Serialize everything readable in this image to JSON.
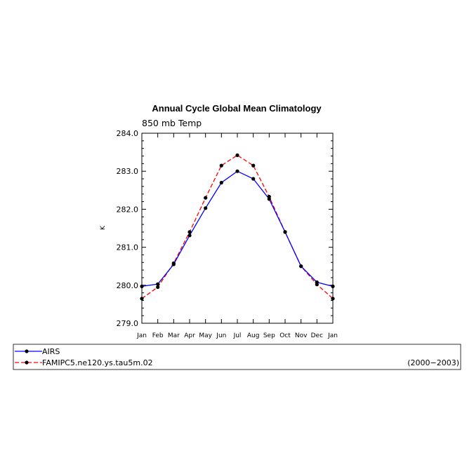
{
  "chart_data": {
    "type": "line",
    "title": "Annual Cycle Global Mean Climatology",
    "subtitle": "850 mb Temp",
    "ylabel": "K",
    "ylim": [
      279.0,
      284.0
    ],
    "yticks": [
      "279.0",
      "280.0",
      "281.0",
      "282.0",
      "283.0",
      "284.0"
    ],
    "categories": [
      "Jan",
      "Feb",
      "Mar",
      "Apr",
      "May",
      "Jun",
      "Jul",
      "Aug",
      "Sep",
      "Oct",
      "Nov",
      "Dec",
      "Jan"
    ],
    "series": [
      {
        "name": "AIRS",
        "color": "#0000ff",
        "line_style": "solid",
        "values": [
          279.97,
          280.03,
          280.55,
          281.31,
          282.03,
          282.7,
          283.0,
          282.8,
          282.27,
          281.4,
          280.5,
          280.08,
          279.97
        ]
      },
      {
        "name": "FAMIPC5.ne120.ys.tau5m.02",
        "color": "#ff0000",
        "line_style": "dashed",
        "values": [
          279.65,
          279.95,
          280.58,
          281.4,
          282.3,
          283.15,
          283.42,
          283.15,
          282.33,
          281.4,
          280.5,
          280.02,
          279.65
        ]
      }
    ],
    "legend_period": "(2000−2003)",
    "grid": false,
    "legend_position": "bottom"
  }
}
